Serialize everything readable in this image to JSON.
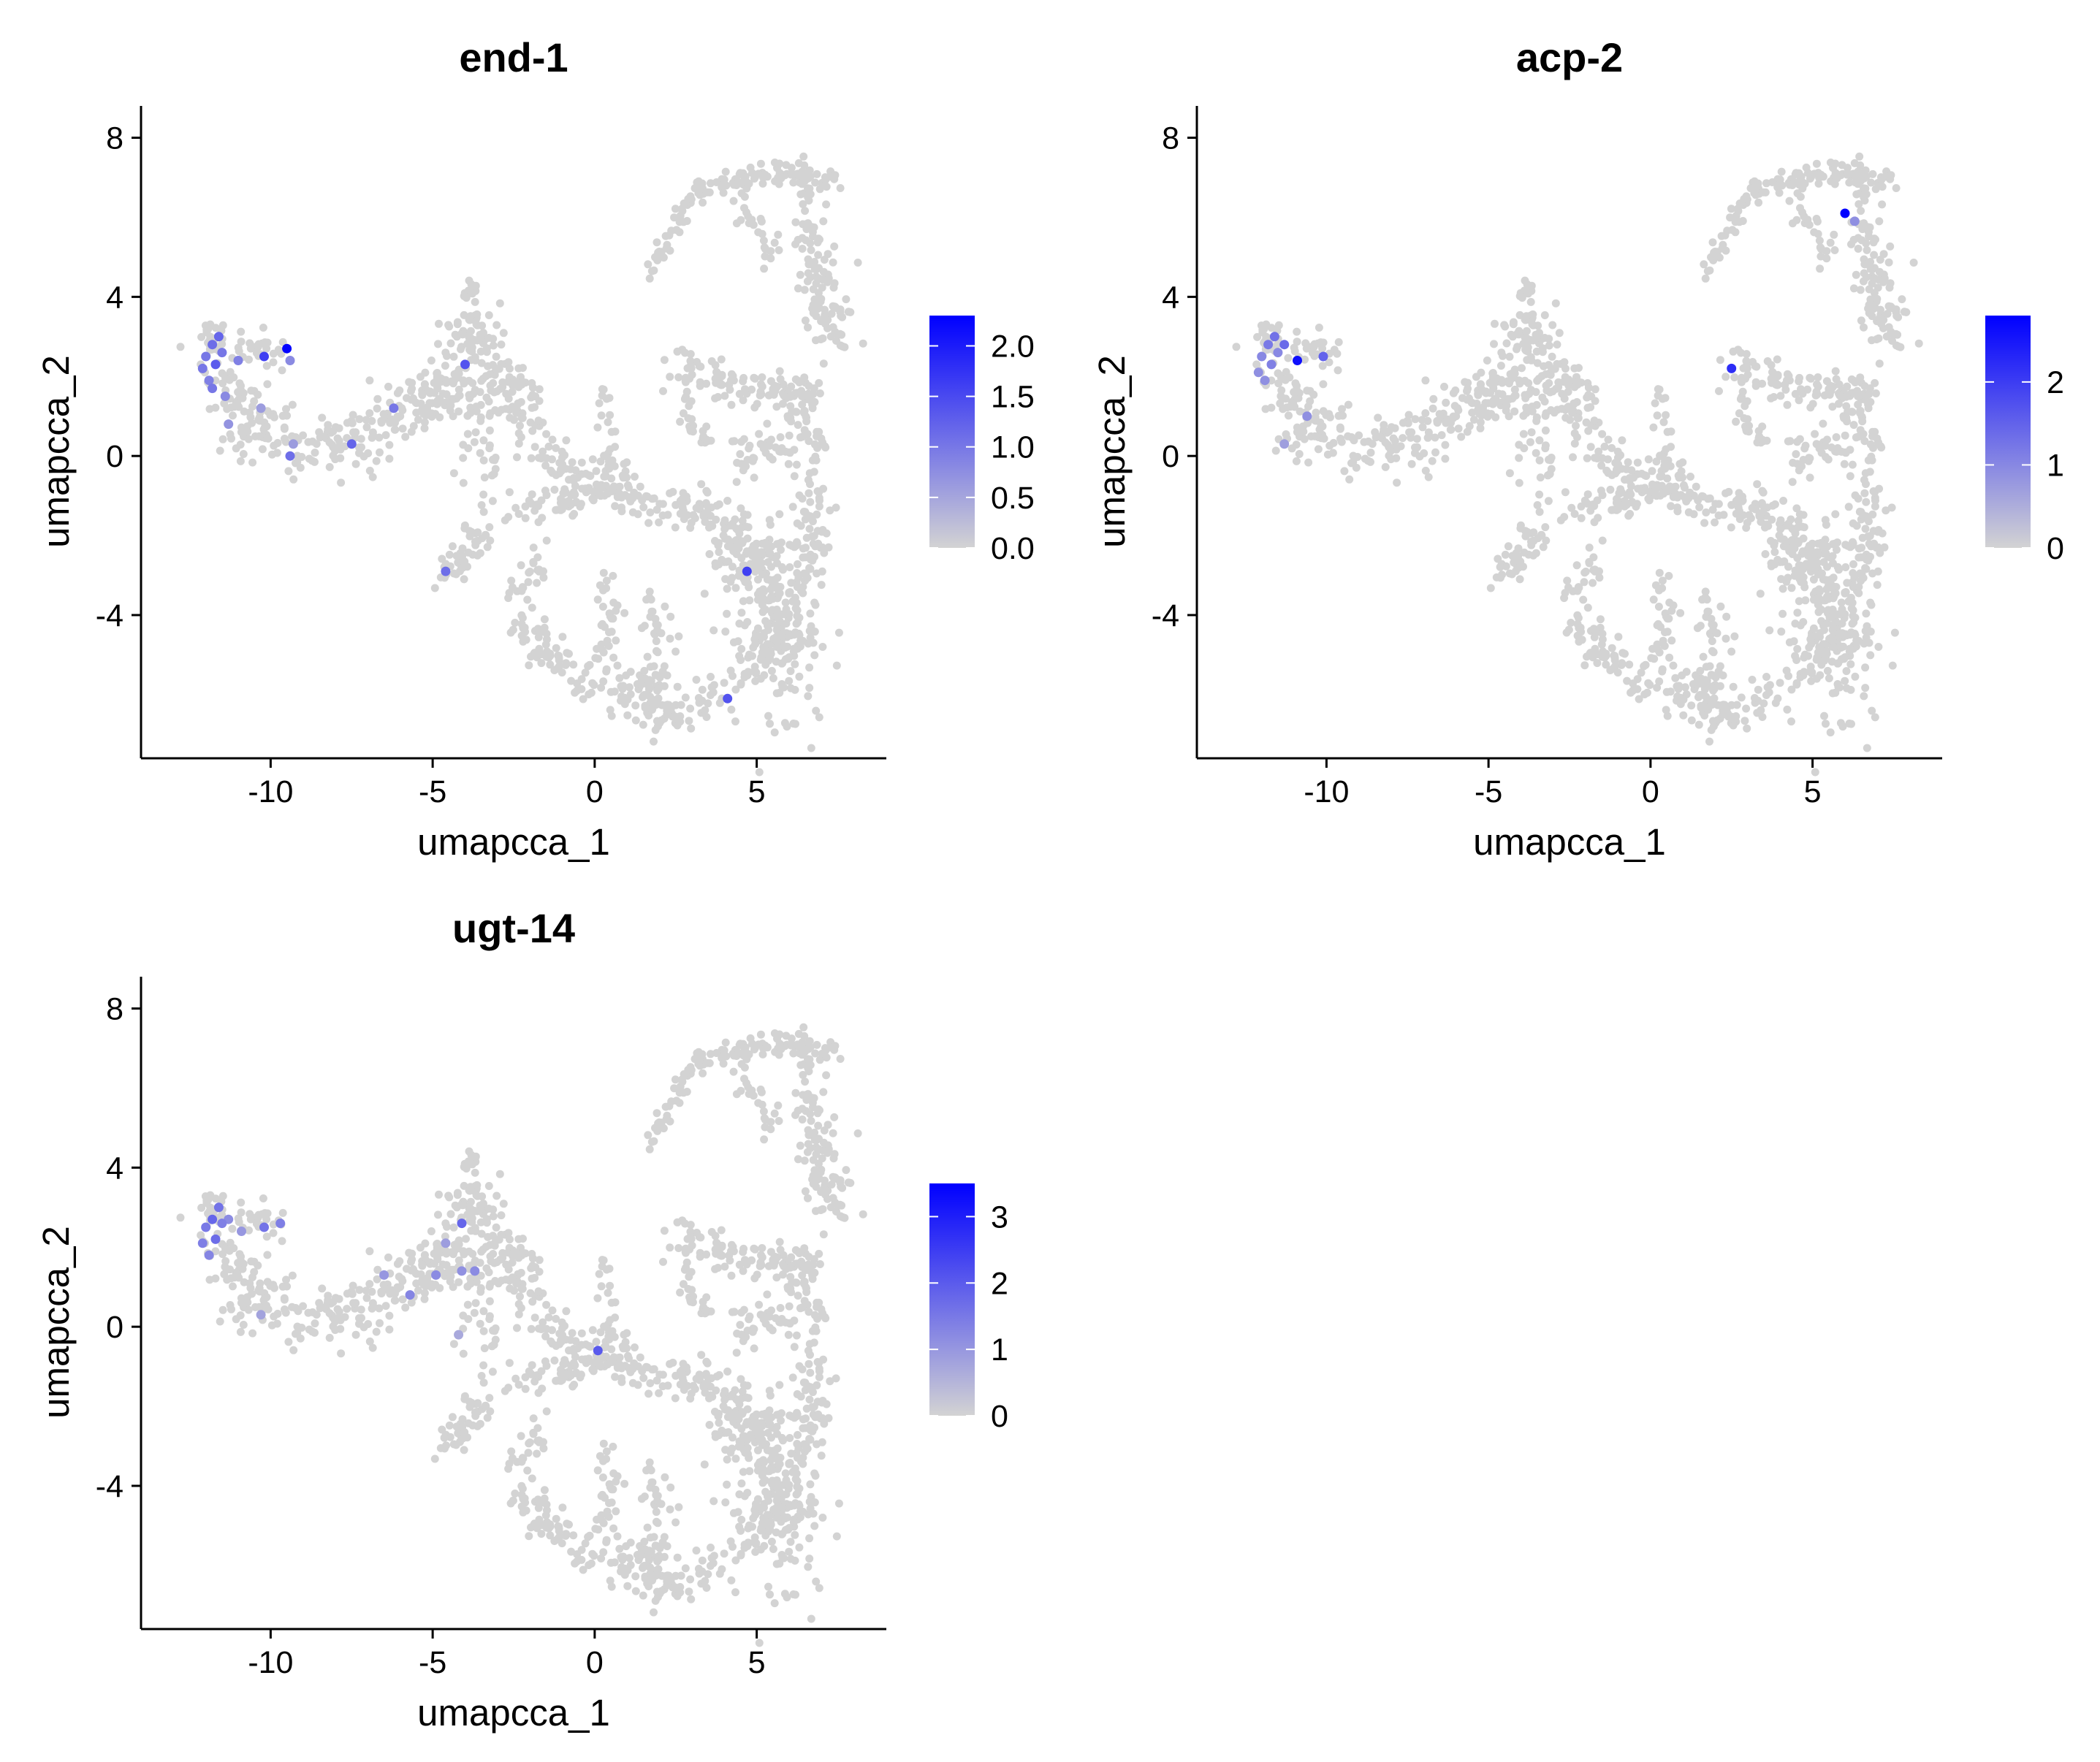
{
  "chart_data": [
    {
      "type": "scatter",
      "title": "end-1",
      "xlabel": "umapcca_1",
      "ylabel": "umapcca_2",
      "xlim": [
        -14.0,
        9.0
      ],
      "ylim": [
        -7.6,
        8.8
      ],
      "xticks": [
        -10,
        -5,
        0,
        5
      ],
      "xtick_labels": [
        "-10",
        "-5",
        "0",
        "5"
      ],
      "yticks": [
        8,
        4,
        0,
        -4
      ],
      "ytick_labels": [
        "8",
        "4",
        "0",
        "-4"
      ],
      "grid": false,
      "legend": {
        "placement": "right",
        "min": 0.0,
        "max": 2.3,
        "low_color": "#d3d3d3",
        "high_color": "#0000ff",
        "ticks": [
          0.0,
          0.5,
          1.0,
          1.5,
          2.0
        ],
        "tick_labels": [
          "0.0",
          "0.5",
          "1.0",
          "1.5",
          "2.0"
        ]
      },
      "expressing_points": [
        [
          -11.6,
          3.0,
          1.2
        ],
        [
          -11.8,
          2.8,
          1.1
        ],
        [
          -12.0,
          2.5,
          1.0
        ],
        [
          -11.7,
          2.3,
          1.3
        ],
        [
          -12.1,
          2.2,
          1.0
        ],
        [
          -11.9,
          1.9,
          0.9
        ],
        [
          -11.5,
          2.6,
          1.0
        ],
        [
          -11.8,
          1.7,
          1.0
        ],
        [
          -11.4,
          1.5,
          0.8
        ],
        [
          -11.0,
          2.4,
          0.9
        ],
        [
          -10.2,
          2.5,
          1.6
        ],
        [
          -9.5,
          2.7,
          2.3
        ],
        [
          -9.4,
          2.4,
          0.8
        ],
        [
          -10.3,
          1.2,
          0.6
        ],
        [
          -9.3,
          0.3,
          0.6
        ],
        [
          -9.4,
          0.0,
          1.1
        ],
        [
          -7.5,
          0.3,
          1.2
        ],
        [
          -6.2,
          1.2,
          1.0
        ],
        [
          -4.0,
          2.3,
          1.4
        ],
        [
          -4.6,
          -2.9,
          1.1
        ],
        [
          4.7,
          -2.9,
          1.6
        ],
        [
          4.1,
          -6.1,
          1.4
        ],
        [
          -11.3,
          0.8,
          0.7
        ]
      ]
    },
    {
      "type": "scatter",
      "title": "acp-2",
      "xlabel": "umapcca_1",
      "ylabel": "umapcca_2",
      "xlim": [
        -14.0,
        9.0
      ],
      "ylim": [
        -7.6,
        8.8
      ],
      "xticks": [
        -10,
        -5,
        0,
        5
      ],
      "xtick_labels": [
        "-10",
        "-5",
        "0",
        "5"
      ],
      "yticks": [
        8,
        4,
        0,
        -4
      ],
      "ytick_labels": [
        "8",
        "4",
        "0",
        "-4"
      ],
      "grid": false,
      "legend": {
        "placement": "right",
        "min": 0.0,
        "max": 2.8,
        "low_color": "#d3d3d3",
        "high_color": "#0000ff",
        "ticks": [
          0,
          1,
          2
        ],
        "tick_labels": [
          "0",
          "1",
          "2"
        ]
      },
      "expressing_points": [
        [
          -11.6,
          3.0,
          1.3
        ],
        [
          -11.8,
          2.8,
          1.2
        ],
        [
          -12.0,
          2.5,
          1.0
        ],
        [
          -11.7,
          2.3,
          1.1
        ],
        [
          -12.1,
          2.1,
          0.9
        ],
        [
          -11.9,
          1.9,
          0.9
        ],
        [
          -11.5,
          2.6,
          1.0
        ],
        [
          -11.3,
          2.8,
          1.4
        ],
        [
          -10.9,
          2.4,
          2.6
        ],
        [
          -10.1,
          2.5,
          1.5
        ],
        [
          -10.6,
          1.0,
          0.9
        ],
        [
          -11.3,
          0.3,
          0.7
        ],
        [
          2.5,
          2.2,
          2.2
        ],
        [
          6.0,
          6.1,
          2.8
        ],
        [
          6.3,
          5.9,
          0.9
        ]
      ]
    },
    {
      "type": "scatter",
      "title": "ugt-14",
      "xlabel": "umapcca_1",
      "ylabel": "umapcca_2",
      "xlim": [
        -14.0,
        9.0
      ],
      "ylim": [
        -7.6,
        8.8
      ],
      "xticks": [
        -10,
        -5,
        0,
        5
      ],
      "xtick_labels": [
        "-10",
        "-5",
        "0",
        "5"
      ],
      "yticks": [
        8,
        4,
        0,
        -4
      ],
      "ytick_labels": [
        "8",
        "4",
        "0",
        "-4"
      ],
      "grid": false,
      "legend": {
        "placement": "right",
        "min": 0.0,
        "max": 3.5,
        "low_color": "#d3d3d3",
        "high_color": "#0000ff",
        "ticks": [
          0,
          1,
          2,
          3
        ],
        "tick_labels": [
          "0",
          "1",
          "2",
          "3"
        ]
      },
      "expressing_points": [
        [
          -11.6,
          3.0,
          1.6
        ],
        [
          -11.8,
          2.7,
          1.8
        ],
        [
          -12.0,
          2.5,
          1.5
        ],
        [
          -11.7,
          2.2,
          1.7
        ],
        [
          -12.1,
          2.1,
          1.4
        ],
        [
          -11.9,
          1.8,
          1.3
        ],
        [
          -11.5,
          2.6,
          1.4
        ],
        [
          -11.3,
          2.7,
          1.2
        ],
        [
          -10.9,
          2.4,
          1.0
        ],
        [
          -10.2,
          2.5,
          1.6
        ],
        [
          -9.7,
          2.6,
          1.4
        ],
        [
          -10.3,
          0.3,
          0.8
        ],
        [
          -6.5,
          1.3,
          1.0
        ],
        [
          -5.7,
          0.8,
          1.3
        ],
        [
          -4.9,
          1.3,
          1.2
        ],
        [
          -4.1,
          2.6,
          1.8
        ],
        [
          -4.6,
          2.1,
          0.9
        ],
        [
          -3.7,
          1.4,
          1.2
        ],
        [
          -4.1,
          1.4,
          1.1
        ],
        [
          0.1,
          -0.6,
          2.0
        ],
        [
          -4.2,
          -0.2,
          0.7
        ]
      ]
    }
  ]
}
